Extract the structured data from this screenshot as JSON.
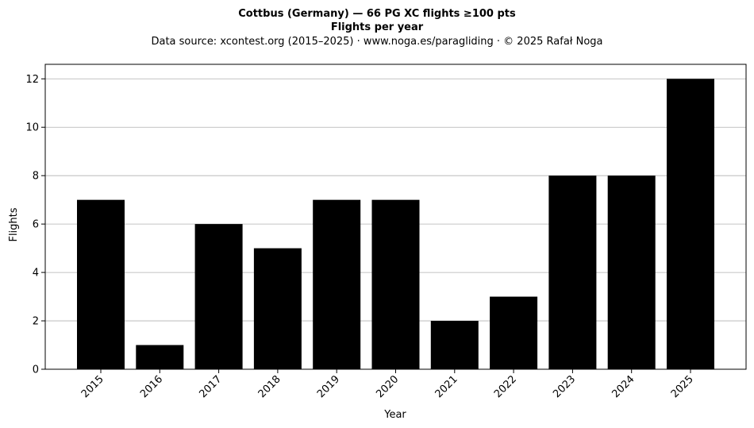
{
  "chart_data": {
    "type": "bar",
    "title": "Cottbus (Germany)  —  66 PG XC flights ≥100 pts",
    "subtitle": "Flights per year",
    "source_line": "Data source: xcontest.org (2015–2025)  ·  www.noga.es/paragliding  ·  © 2025 Rafał Noga",
    "xlabel": "Year",
    "ylabel": "Flights",
    "categories": [
      "2015",
      "2016",
      "2017",
      "2018",
      "2019",
      "2020",
      "2021",
      "2022",
      "2023",
      "2024",
      "2025"
    ],
    "values": [
      7,
      1,
      6,
      5,
      7,
      7,
      2,
      3,
      8,
      8,
      12
    ],
    "ylim": [
      0,
      12.6
    ],
    "yticks": [
      0,
      2,
      4,
      6,
      8,
      10,
      12
    ],
    "grid": "horizontal",
    "bar_color": "#000000",
    "grid_color": "#b0b0b0"
  }
}
